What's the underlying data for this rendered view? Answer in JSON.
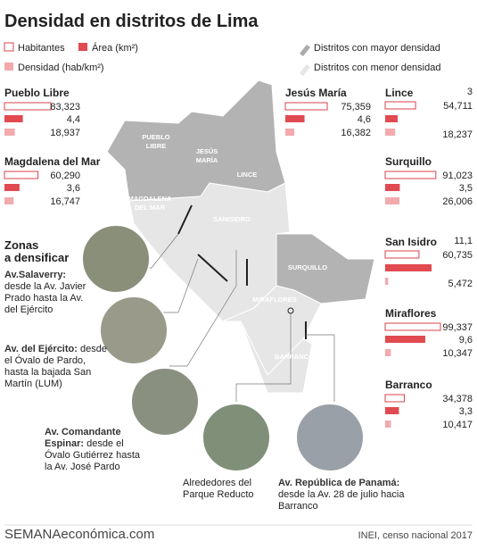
{
  "header": {
    "title": "Densidad en distritos de Lima"
  },
  "legend": {
    "population": "Habitantes",
    "area": "Área (km²)",
    "density": "Densidad (hab/km²)",
    "high": "Distritos con mayor densidad",
    "low": "Distritos con menor densidad"
  },
  "districts": [
    {
      "name": "Pueblo Libre",
      "values": [
        83323,
        4.4,
        18937
      ],
      "value_labels": [
        "83,323",
        "4,4",
        "18,937"
      ]
    },
    {
      "name": "Magdalena del Mar",
      "values": [
        60290,
        3.6,
        16747
      ],
      "value_labels": [
        "60,290",
        "3,6",
        "16,747"
      ]
    },
    {
      "name": "Jesús María",
      "values": [
        75359,
        4.6,
        16382
      ],
      "value_labels": [
        "75,359",
        "4,6",
        "16,382"
      ]
    },
    {
      "name": "Lince",
      "values": [
        54711,
        3,
        18237
      ],
      "value_labels": [
        "54,711",
        "3",
        "18,237"
      ]
    },
    {
      "name": "Surquillo",
      "values": [
        91023,
        3.5,
        26006
      ],
      "value_labels": [
        "91,023",
        "3,5",
        "26,006"
      ]
    },
    {
      "name": "San Isidro",
      "values": [
        60735,
        11.1,
        5472
      ],
      "value_labels": [
        "60,735",
        "11,1",
        "5,472"
      ]
    },
    {
      "name": "Miraflores",
      "values": [
        99337,
        9.6,
        10347
      ],
      "value_labels": [
        "99,337",
        "9,6",
        "10,347"
      ]
    },
    {
      "name": "Barranco",
      "values": [
        34378,
        3.3,
        10417
      ],
      "value_labels": [
        "34,378",
        "3,3",
        "10,417"
      ]
    }
  ],
  "map_labels": [
    [
      "PUEBLO",
      "LIBRE"
    ],
    [
      "JESÚS",
      "MARÍA"
    ],
    [
      "LINCE"
    ],
    [
      "MAGDALENA",
      "DEL MAR"
    ],
    [
      "SANISIDRO"
    ],
    [
      "SURQUILLO"
    ],
    [
      "MIRAFLORES"
    ],
    [
      "BARRANCO"
    ]
  ],
  "zones": {
    "title": [
      "Zonas",
      "a densificar"
    ],
    "items": [
      {
        "name": "Av.Salaverry:",
        "description": "desde la Av. Javier Prado hasta la Av. del Ejército"
      },
      {
        "name": "Av. del Ejército:",
        "description": "desde el Óvalo de Pardo, hasta la bajada San Martín (LUM)"
      },
      {
        "name": "Av. Comandante Espinar:",
        "description": "desde el Óvalo Gutiérrez hasta la Av. José Pardo"
      },
      {
        "name": "",
        "description": "Alrededores del Parque Reducto"
      },
      {
        "name": "Av. República de Panamá:",
        "description": "desde la Av. 28 de julio hacia Barranco"
      }
    ]
  },
  "footer": {
    "brand": "SEMANAeconómica.com",
    "source": "INEI, censo nacional 2017"
  }
}
